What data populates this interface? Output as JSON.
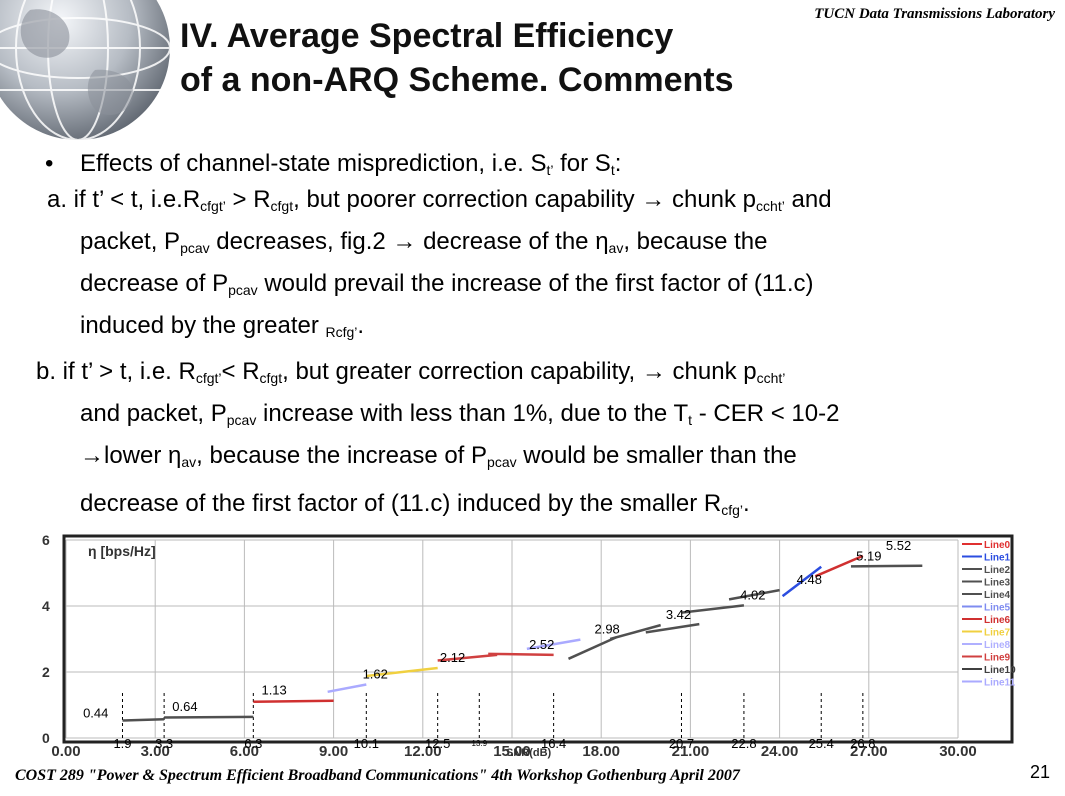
{
  "header": {
    "title_line1": "IV. Average Spectral Efficiency",
    "title_line2": "of a non-ARQ Scheme.  Comments",
    "lab": "TUCN Data Transmissions Laboratory"
  },
  "body": {
    "bullet": "•",
    "intro": "Effects of channel-state misprediction, i.e. S",
    "a": {
      "l1": "a. if t’ < t, i.e.R",
      "l2": "packet, P",
      "l3": "decrease of P",
      "l4": "induced by the greater "
    },
    "b": {
      "l1": "b. if t’ > t, i.e. R",
      "l2": "and packet, P",
      "l3": "→lower η",
      "l4": "decrease of the first factor of (11.c) induced by the smaller R"
    }
  },
  "footer": {
    "text": "COST 289 \"Power & Spectrum Efficient Broadband Communications\"     4th Workshop Gothenburg April 2007",
    "page": "21"
  },
  "chart_data": {
    "type": "line",
    "ylabel": "η [bps/Hz]",
    "xlabel": "SNR(dB)",
    "xlim": [
      0,
      30
    ],
    "ylim": [
      0,
      6
    ],
    "xticks": [
      "0.00",
      "3.00",
      "6.00",
      "9.00",
      "12.00",
      "15.00",
      "18.00",
      "21.00",
      "24.00",
      "27.00",
      "30.00"
    ],
    "yticks": [
      "0",
      "2",
      "4",
      "6"
    ],
    "legend": [
      "Line0",
      "Line1",
      "Line2",
      "Line3",
      "Line4",
      "Line5",
      "Line6",
      "Line7",
      "Line8",
      "Line9",
      "Line10",
      "Line11"
    ],
    "legend_colors": [
      "#e03030",
      "#2b4de0",
      "#505050",
      "#505050",
      "#505050",
      "#7f8cf0",
      "#d03030",
      "#f0d040",
      "#b0b0ff",
      "#d04040",
      "#404040",
      "#aaaaff"
    ],
    "series": [
      {
        "x": [
          1.9,
          3.3
        ],
        "y": [
          0.53,
          0.57
        ],
        "color": "#505050"
      },
      {
        "x": [
          3.3,
          6.3
        ],
        "y": [
          0.62,
          0.64
        ],
        "color": "#505050"
      },
      {
        "x": [
          6.3,
          9.0
        ],
        "y": [
          1.1,
          1.13
        ],
        "color": "#d03030"
      },
      {
        "x": [
          8.8,
          10.1
        ],
        "y": [
          1.4,
          1.62
        ],
        "color": "#aaaaff"
      },
      {
        "x": [
          10.1,
          12.5
        ],
        "y": [
          1.88,
          2.12
        ],
        "color": "#f0d040"
      },
      {
        "x": [
          12.5,
          14.5
        ],
        "y": [
          2.35,
          2.52
        ],
        "color": "#d04040"
      },
      {
        "x": [
          14.2,
          16.4
        ],
        "y": [
          2.55,
          2.52
        ],
        "color": "#d04040"
      },
      {
        "x": [
          15.5,
          17.3
        ],
        "y": [
          2.7,
          2.98
        ],
        "color": "#aaaaff"
      },
      {
        "x": [
          16.9,
          18.5
        ],
        "y": [
          2.4,
          3.05
        ],
        "color": "#505050"
      },
      {
        "x": [
          18.3,
          20.0
        ],
        "y": [
          3.0,
          3.42
        ],
        "color": "#505050"
      },
      {
        "x": [
          19.5,
          21.3
        ],
        "y": [
          3.2,
          3.45
        ],
        "color": "#505050"
      },
      {
        "x": [
          20.7,
          22.8
        ],
        "y": [
          3.8,
          4.02
        ],
        "color": "#505050"
      },
      {
        "x": [
          22.3,
          24.0
        ],
        "y": [
          4.2,
          4.48
        ],
        "color": "#505050"
      },
      {
        "x": [
          24.1,
          25.4
        ],
        "y": [
          4.3,
          5.19
        ],
        "color": "#2b4de0"
      },
      {
        "x": [
          25.2,
          26.8
        ],
        "y": [
          4.9,
          5.52
        ],
        "color": "#d03030"
      },
      {
        "x": [
          26.4,
          28.8
        ],
        "y": [
          5.2,
          5.22
        ],
        "color": "#505050"
      }
    ],
    "point_labels": [
      {
        "x": 1.0,
        "y": 0.44,
        "text": "0.44"
      },
      {
        "x": 4.0,
        "y": 0.64,
        "text": "0.64"
      },
      {
        "x": 7.0,
        "y": 1.13,
        "text": "1.13"
      },
      {
        "x": 10.4,
        "y": 1.62,
        "text": "1.62"
      },
      {
        "x": 13.0,
        "y": 2.12,
        "text": "2.12"
      },
      {
        "x": 16.0,
        "y": 2.52,
        "text": "2.52"
      },
      {
        "x": 18.2,
        "y": 2.98,
        "text": "2.98"
      },
      {
        "x": 20.6,
        "y": 3.42,
        "text": "3.42"
      },
      {
        "x": 23.1,
        "y": 4.02,
        "text": "4.02"
      },
      {
        "x": 25.0,
        "y": 4.48,
        "text": "4.48"
      },
      {
        "x": 27.0,
        "y": 5.19,
        "text": "5.19"
      },
      {
        "x": 28.0,
        "y": 5.52,
        "text": "5.52"
      }
    ],
    "threshold_labels": [
      {
        "x": 1.9,
        "text": "1.9"
      },
      {
        "x": 3.3,
        "text": "3.3"
      },
      {
        "x": 6.3,
        "text": "6.3"
      },
      {
        "x": 10.1,
        "text": "10.1"
      },
      {
        "x": 12.5,
        "text": "12.5"
      },
      {
        "x": 13.9,
        "text": "13.9"
      },
      {
        "x": 16.4,
        "text": "16.4"
      },
      {
        "x": 20.7,
        "text": "20.7"
      },
      {
        "x": 22.8,
        "text": "22.8"
      },
      {
        "x": 25.4,
        "text": "25.4"
      },
      {
        "x": 26.8,
        "text": "26.8"
      }
    ]
  }
}
